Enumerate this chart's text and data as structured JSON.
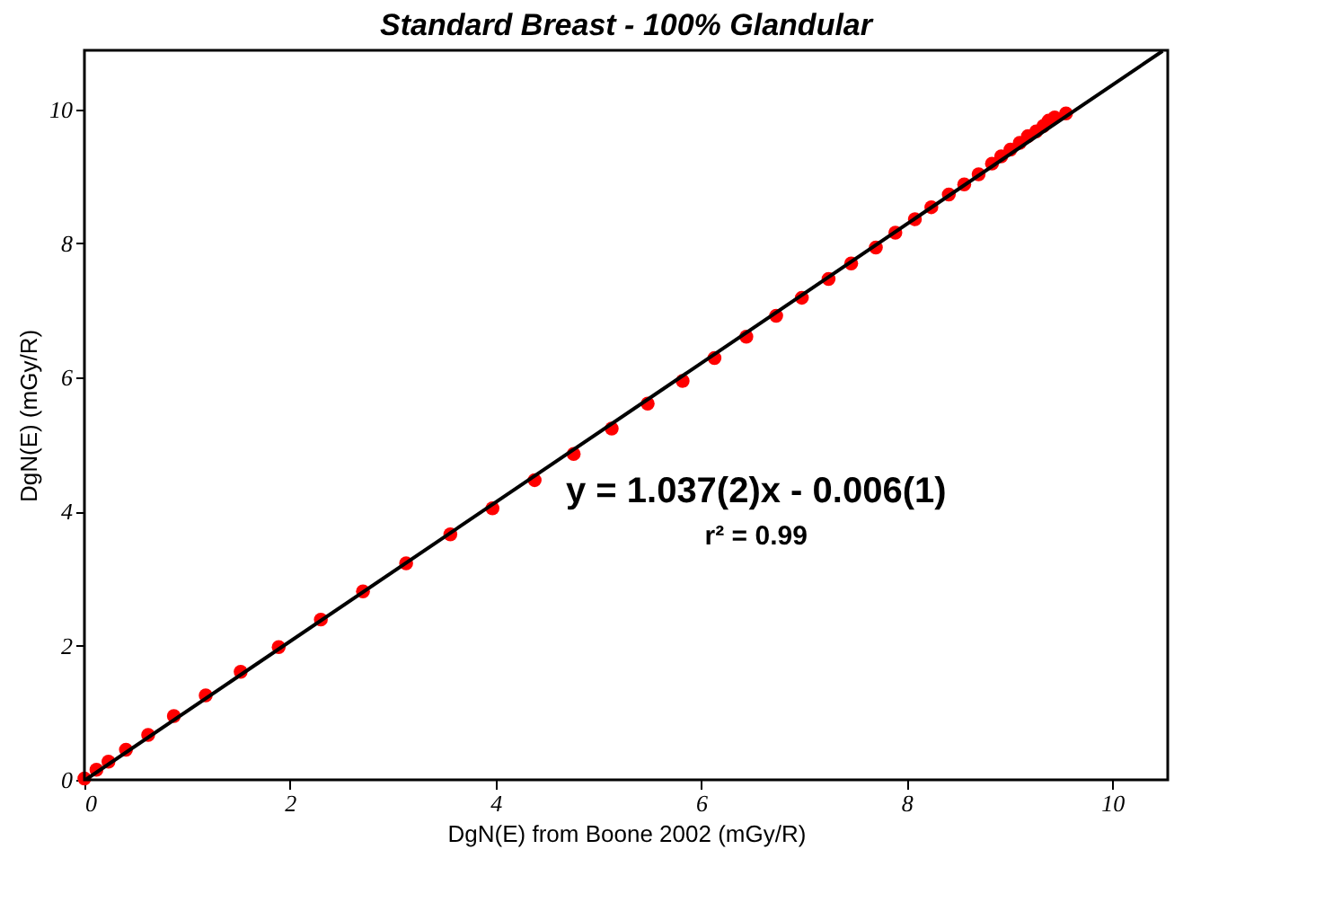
{
  "chart_data": {
    "type": "scatter",
    "title": "Standard Breast - 100% Glandular",
    "xlabel": "DgN(E) from Boone 2002 (mGy/R)",
    "ylabel": "DgN(E) (mGy/R)",
    "xlim": [
      0,
      10.54
    ],
    "ylim": [
      0,
      10.88
    ],
    "xticks": [
      0,
      2,
      4,
      6,
      8,
      10
    ],
    "yticks": [
      0,
      2,
      4,
      6,
      8,
      10
    ],
    "grid": false,
    "marker": "circle",
    "annotations": [
      "y = 1.037(2)x - 0.006(1)",
      "r² = 0.99"
    ],
    "series": [
      {
        "color": "#ff0000",
        "x": [
          0,
          0.117,
          0.234,
          0.404,
          0.62,
          0.87,
          1.18,
          1.52,
          1.89,
          2.3,
          2.71,
          3.13,
          3.56,
          3.97,
          4.38,
          4.76,
          5.13,
          5.48,
          5.82,
          6.13,
          6.44,
          6.73,
          6.98,
          7.24,
          7.46,
          7.7,
          7.89,
          8.08,
          8.24,
          8.41,
          8.56,
          8.7,
          8.83,
          8.92,
          9.01,
          9.1,
          9.18,
          9.26,
          9.33,
          9.38,
          9.44,
          9.55
        ],
        "values": [
          0.02,
          0.15,
          0.27,
          0.45,
          0.67,
          0.95,
          1.26,
          1.61,
          1.98,
          2.39,
          2.81,
          3.23,
          3.66,
          4.05,
          4.47,
          4.86,
          5.24,
          5.61,
          5.95,
          6.29,
          6.61,
          6.92,
          7.19,
          7.47,
          7.7,
          7.94,
          8.16,
          8.36,
          8.54,
          8.73,
          8.88,
          9.03,
          9.19,
          9.3,
          9.4,
          9.5,
          9.6,
          9.67,
          9.75,
          9.83,
          9.88,
          9.94
        ]
      },
      {
        "type": "line",
        "color": "#000000",
        "line_style": "solid",
        "marker": "none",
        "x": [
          0.01,
          10.49
        ],
        "values": [
          0,
          10.87
        ]
      }
    ]
  }
}
